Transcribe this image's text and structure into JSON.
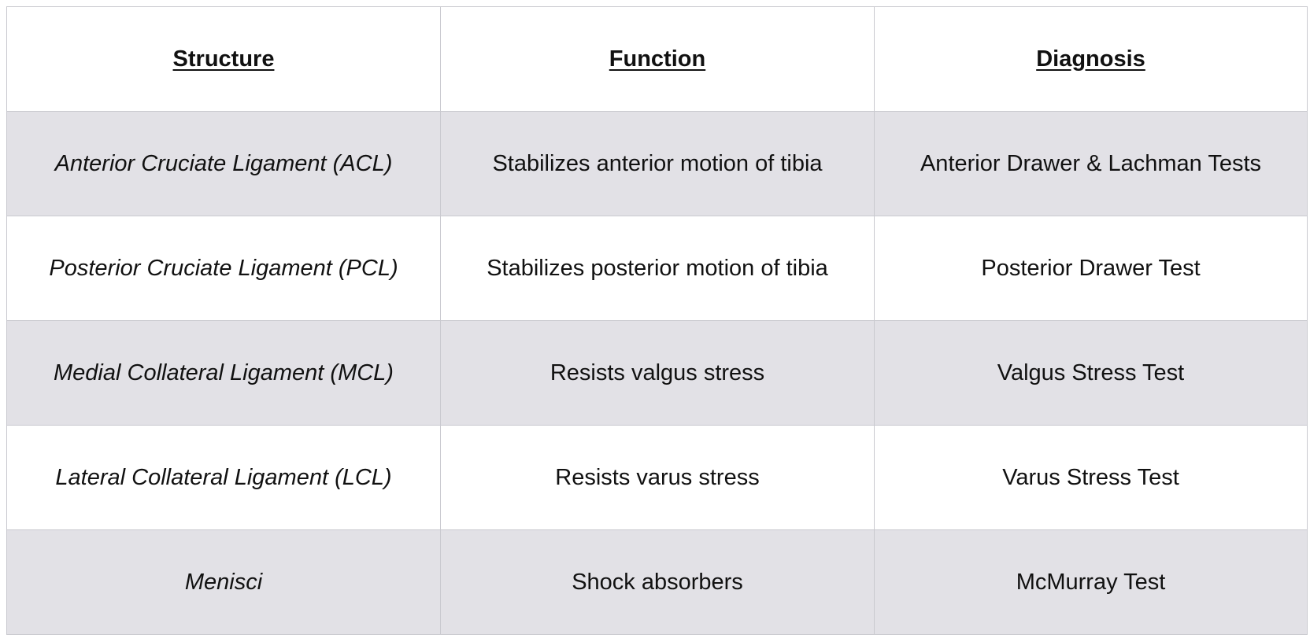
{
  "table": {
    "headers": [
      "Structure",
      "Function",
      "Diagnosis"
    ],
    "rows": [
      {
        "structure": "Anterior Cruciate Ligament (ACL)",
        "function": "Stabilizes anterior motion of tibia",
        "diagnosis": "Anterior Drawer & Lachman Tests"
      },
      {
        "structure": "Posterior Cruciate Ligament (PCL)",
        "function": "Stabilizes posterior motion of tibia",
        "diagnosis": "Posterior Drawer Test"
      },
      {
        "structure": "Medial Collateral Ligament (MCL)",
        "function": "Resists valgus stress",
        "diagnosis": "Valgus Stress Test"
      },
      {
        "structure": "Lateral Collateral Ligament (LCL)",
        "function": "Resists varus stress",
        "diagnosis": "Varus Stress Test"
      },
      {
        "structure": "Menisci",
        "function": "Shock absorbers",
        "diagnosis": "McMurray Test"
      }
    ]
  },
  "colors": {
    "shaded_row": "#e2e1e6",
    "plain_row": "#ffffff",
    "border": "#c9c9cf",
    "text": "#111111"
  }
}
